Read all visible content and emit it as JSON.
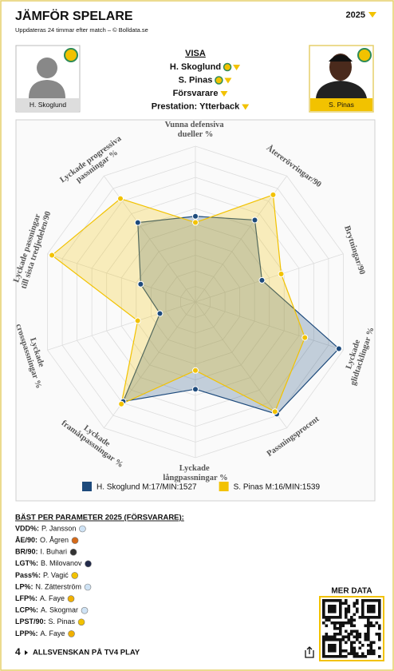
{
  "header": {
    "title": "JÄMFÖR SPELARE",
    "subtitle": "Uppdateras 24 timmar efter match – © Bolldata.se",
    "year": "2025"
  },
  "players": [
    "H. Skoglund",
    "S. Pinas"
  ],
  "selectors": {
    "heading": "VISA",
    "items": [
      "H. Skoglund",
      "S. Pinas",
      "Försvarare",
      "Prestation: Ytterback"
    ]
  },
  "chart_data": {
    "type": "radar",
    "categories": [
      "Vunna defensiva dueller %",
      "Återerövringar/90",
      "Brytningar/90",
      "Lyckade glidtacklingar %",
      "Passningsprocent",
      "Lyckade långpassningar %",
      "Lyckade framåtpassningar %",
      "Lyckade crosspassningar %",
      "Lyckade passningar till sista tredjedelen/90",
      "Lyckade progressiva passningar %"
    ],
    "rlim": [
      0,
      100
    ],
    "series": [
      {
        "name": "H. Skoglund M:17/MIN:1527",
        "color": "#1d4a7c",
        "values": [
          55,
          65,
          45,
          97,
          89,
          56,
          79,
          24,
          37,
          63
        ]
      },
      {
        "name": "S. Pinas M:16/MIN:1539",
        "color": "#f2c200",
        "values": [
          51,
          85,
          58,
          74,
          87,
          44,
          81,
          39,
          97,
          82
        ]
      }
    ]
  },
  "best": {
    "heading": "BÄST PER PARAMETER 2025 (FÖRSVARARE):",
    "items": [
      {
        "param": "VDD%:",
        "player": "P. Jansson"
      },
      {
        "param": "ÅE/90:",
        "player": "O. Ågren"
      },
      {
        "param": "BR/90:",
        "player": "I. Buhari"
      },
      {
        "param": "LGT%:",
        "player": "B. Milovanov"
      },
      {
        "param": "Pass%:",
        "player": "P. Vagić"
      },
      {
        "param": "LP%:",
        "player": "N. Zätterström"
      },
      {
        "param": "LFP%:",
        "player": "A. Faye"
      },
      {
        "param": "LCP%:",
        "player": "A. Skogmar"
      },
      {
        "param": "LPST/90:",
        "player": "S. Pinas"
      },
      {
        "param": "LPP%:",
        "player": "A. Faye"
      }
    ]
  },
  "footer": {
    "more": "MER DATA",
    "logo": "4",
    "link": "ALLSVENSKAN PÅ TV4 PLAY"
  }
}
